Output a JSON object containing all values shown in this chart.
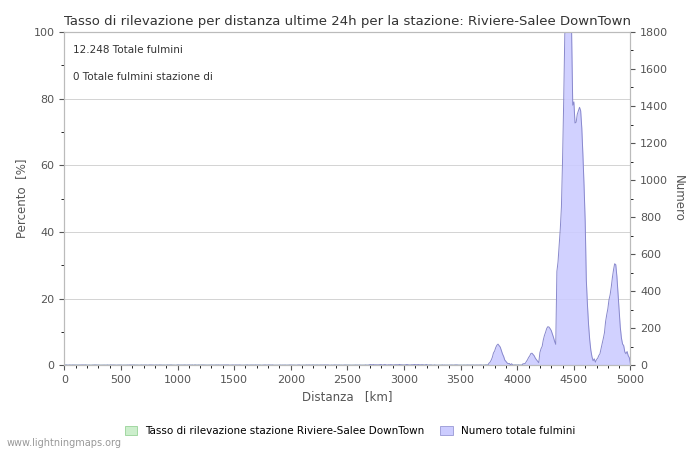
{
  "title": "Tasso di rilevazione per distanza ultime 24h per la stazione: Riviere-Salee DownTown",
  "xlabel": "Distanza   [km]",
  "ylabel_left": "Percento  [%]",
  "ylabel_right": "Numero",
  "annotation_line1": "12.248 Totale fulmini",
  "annotation_line2": "0 Totale fulmini stazione di",
  "xlim": [
    0,
    5000
  ],
  "ylim_left": [
    0,
    100
  ],
  "ylim_right": [
    0,
    1800
  ],
  "yticks_left": [
    0,
    20,
    40,
    60,
    80,
    100
  ],
  "yticks_right": [
    0,
    200,
    400,
    600,
    800,
    1000,
    1200,
    1400,
    1600,
    1800
  ],
  "xticks": [
    0,
    500,
    1000,
    1500,
    2000,
    2500,
    3000,
    3500,
    4000,
    4500,
    5000
  ],
  "fill_color_green": "#cceecc",
  "fill_color_blue": "#ccccff",
  "line_color_green": "#88cc88",
  "line_color_blue": "#8888cc",
  "legend_label_green": "Tasso di rilevazione stazione Riviere-Salee DownTown",
  "legend_label_blue": "Numero totale fulmini",
  "watermark": "www.lightningmaps.org",
  "background_color": "#ffffff",
  "grid_color": "#cccccc",
  "title_fontsize": 9.5,
  "axis_fontsize": 8,
  "label_fontsize": 8.5
}
